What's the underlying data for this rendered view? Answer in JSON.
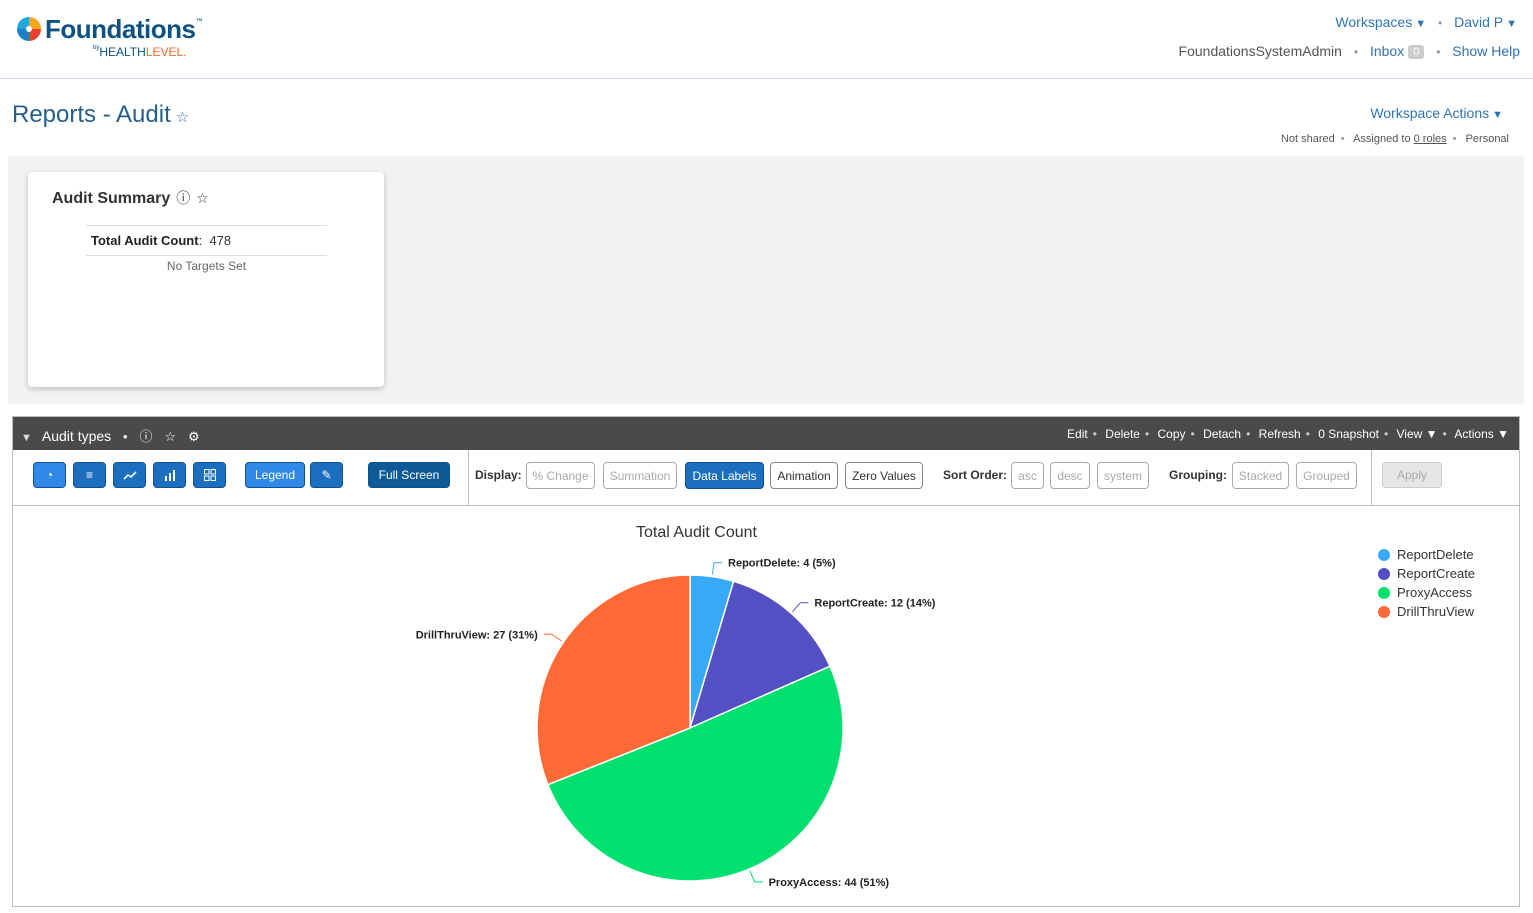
{
  "brand": {
    "name": "Foundations",
    "tm": "™",
    "by": "by",
    "company_a": "HEALTH",
    "company_b": "LEVEL",
    "company_c": "."
  },
  "header": {
    "workspaces": "Workspaces",
    "user": "David P",
    "account": "FoundationsSystemAdmin",
    "inbox": "Inbox",
    "inbox_count": "0",
    "help": "Show Help"
  },
  "page": {
    "title": "Reports - Audit",
    "workspace_actions": "Workspace Actions",
    "shared": "Not shared",
    "assigned_prefix": "Assigned to ",
    "assigned_roles": "0 roles",
    "personal": "Personal"
  },
  "summary": {
    "title": "Audit Summary",
    "stat_label": "Total Audit Count",
    "stat_value": "478",
    "note": "No Targets Set"
  },
  "panel": {
    "title": "Audit types",
    "actions": [
      "Edit",
      "Delete",
      "Copy",
      "Detach",
      "Refresh",
      "0 Snapshot",
      "View",
      "Actions"
    ]
  },
  "toolbar": {
    "legend": "Legend",
    "full_screen": "Full Screen",
    "display_label": "Display:",
    "display_options": [
      "% Change",
      "Summation",
      "Data Labels",
      "Animation",
      "Zero Values"
    ],
    "sort_label": "Sort Order:",
    "sort_options": [
      "asc",
      "desc",
      "system"
    ],
    "grouping_label": "Grouping:",
    "grouping_options": [
      "Stacked",
      "Grouped"
    ],
    "apply": "Apply"
  },
  "colors": {
    "ReportDelete": "#36a9f8",
    "ReportCreate": "#5450c4",
    "ProxyAccess": "#00e06e",
    "DrillThruView": "#fe6a35"
  },
  "chart_data": {
    "type": "pie",
    "title": "Total Audit Count",
    "categories": [
      "ReportDelete",
      "ReportCreate",
      "ProxyAccess",
      "DrillThruView"
    ],
    "values": [
      4,
      12,
      44,
      27
    ],
    "percent_labels": [
      "5%",
      "14%",
      "51%",
      "31%"
    ],
    "data_labels": [
      "ReportDelete: 4 (5%)",
      "ReportCreate: 12 (14%)",
      "ProxyAccess: 44 (51%)",
      "DrillThruView: 27 (31%)"
    ],
    "legend_position": "top-right"
  }
}
